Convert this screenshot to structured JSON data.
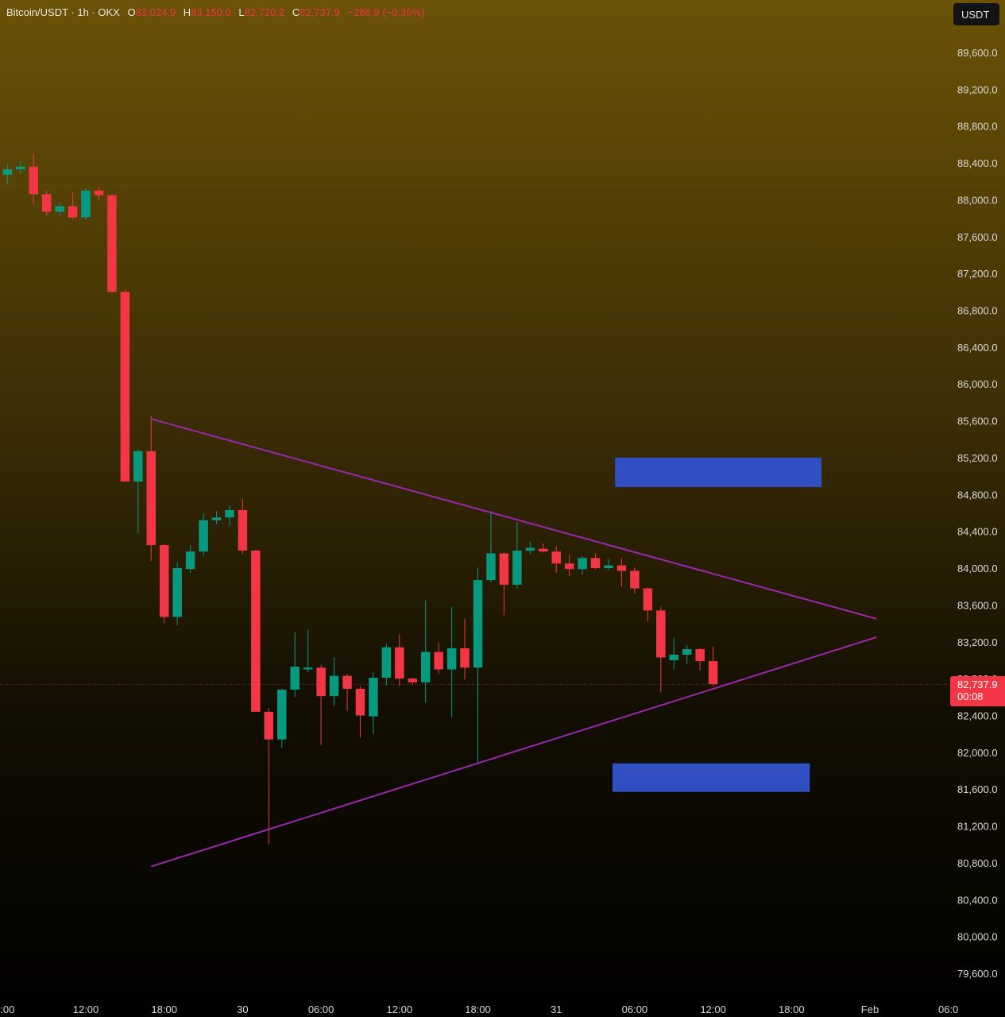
{
  "legend": {
    "symbol": "Bitcoin/USDT · 1h · OKX",
    "open_label": "O",
    "open": "83,024.9",
    "high_label": "H",
    "high": "83,150.0",
    "low_label": "L",
    "low": "82,720.2",
    "close_label": "C",
    "close": "82,737.9",
    "change": "−286.9 (−0.35%)"
  },
  "currency": "USDT",
  "last_price": {
    "price": "82,737.9",
    "countdown": "00:08"
  },
  "colors": {
    "up": "#089981",
    "down": "#f23645",
    "trendline": "#9c27b0",
    "zone": "#2f4fc2",
    "background_top": "#6b5206",
    "background_bottom": "#000000",
    "axis_text": "#d9d9d9"
  },
  "chart_data": {
    "type": "candlestick",
    "ylim": [
      79400,
      90000
    ],
    "y_ticks": [
      "79,600.0",
      "80,000.0",
      "80,400.0",
      "80,800.0",
      "81,200.0",
      "81,600.0",
      "82,000.0",
      "82,400.0",
      "82,800.0",
      "83,200.0",
      "83,600.0",
      "84,000.0",
      "84,400.0",
      "84,800.0",
      "85,200.0",
      "85,600.0",
      "86,000.0",
      "86,400.0",
      "86,800.0",
      "87,200.0",
      "87,600.0",
      "88,000.0",
      "88,400.0",
      "88,800.0",
      "89,200.0",
      "89,600.0"
    ],
    "x_ticks": [
      {
        "label": ":00",
        "i": -6
      },
      {
        "label": "12:00",
        "i": 0
      },
      {
        "label": "18:00",
        "i": 6
      },
      {
        "label": "30",
        "i": 12
      },
      {
        "label": "06:00",
        "i": 18
      },
      {
        "label": "12:00",
        "i": 24
      },
      {
        "label": "18:00",
        "i": 30
      },
      {
        "label": "31",
        "i": 36
      },
      {
        "label": "06:00",
        "i": 42
      },
      {
        "label": "12:00",
        "i": 48
      },
      {
        "label": "18:00",
        "i": 54
      },
      {
        "label": "Feb",
        "i": 60
      },
      {
        "label": "06:0",
        "i": 66
      }
    ],
    "candles": [
      {
        "i": -6,
        "o": 88270,
        "h": 88390,
        "l": 88170,
        "c": 88330
      },
      {
        "i": -5,
        "o": 88330,
        "h": 88420,
        "l": 88290,
        "c": 88360
      },
      {
        "i": -4,
        "o": 88360,
        "h": 88500,
        "l": 87950,
        "c": 88060
      },
      {
        "i": -3,
        "o": 88060,
        "h": 88100,
        "l": 87830,
        "c": 87870
      },
      {
        "i": -2,
        "o": 87870,
        "h": 87970,
        "l": 87830,
        "c": 87930
      },
      {
        "i": -1,
        "o": 87930,
        "h": 88080,
        "l": 87790,
        "c": 87810
      },
      {
        "i": 0,
        "o": 87810,
        "h": 88130,
        "l": 87780,
        "c": 88100
      },
      {
        "i": 1,
        "o": 88100,
        "h": 88140,
        "l": 88000,
        "c": 88050
      },
      {
        "i": 2,
        "o": 88050,
        "h": 88060,
        "l": 86990,
        "c": 87000
      },
      {
        "i": 3,
        "o": 87000,
        "h": 87020,
        "l": 84950,
        "c": 84940
      },
      {
        "i": 4,
        "o": 84940,
        "h": 85290,
        "l": 84380,
        "c": 85270
      },
      {
        "i": 5,
        "o": 85270,
        "h": 85650,
        "l": 84080,
        "c": 84250
      },
      {
        "i": 6,
        "o": 84250,
        "h": 84260,
        "l": 83400,
        "c": 83470
      },
      {
        "i": 7,
        "o": 83470,
        "h": 84060,
        "l": 83380,
        "c": 84000
      },
      {
        "i": 8,
        "o": 83990,
        "h": 84250,
        "l": 83950,
        "c": 84180
      },
      {
        "i": 9,
        "o": 84180,
        "h": 84590,
        "l": 84130,
        "c": 84520
      },
      {
        "i": 10,
        "o": 84520,
        "h": 84620,
        "l": 84480,
        "c": 84550
      },
      {
        "i": 11,
        "o": 84550,
        "h": 84680,
        "l": 84460,
        "c": 84630
      },
      {
        "i": 12,
        "o": 84630,
        "h": 84750,
        "l": 84150,
        "c": 84190
      },
      {
        "i": 13,
        "o": 84190,
        "h": 84200,
        "l": 82450,
        "c": 82440
      },
      {
        "i": 14,
        "o": 82440,
        "h": 82480,
        "l": 81000,
        "c": 82140
      },
      {
        "i": 15,
        "o": 82140,
        "h": 82690,
        "l": 82050,
        "c": 82680
      },
      {
        "i": 16,
        "o": 82680,
        "h": 83300,
        "l": 82600,
        "c": 82930
      },
      {
        "i": 17,
        "o": 82900,
        "h": 83330,
        "l": 82870,
        "c": 82920
      },
      {
        "i": 18,
        "o": 82920,
        "h": 82950,
        "l": 82080,
        "c": 82610
      },
      {
        "i": 19,
        "o": 82610,
        "h": 83030,
        "l": 82500,
        "c": 82830
      },
      {
        "i": 20,
        "o": 82830,
        "h": 82850,
        "l": 82450,
        "c": 82690
      },
      {
        "i": 21,
        "o": 82690,
        "h": 82720,
        "l": 82160,
        "c": 82400
      },
      {
        "i": 22,
        "o": 82390,
        "h": 82870,
        "l": 82200,
        "c": 82810
      },
      {
        "i": 23,
        "o": 82810,
        "h": 83180,
        "l": 82730,
        "c": 83140
      },
      {
        "i": 24,
        "o": 83140,
        "h": 83280,
        "l": 82720,
        "c": 82800
      },
      {
        "i": 25,
        "o": 82800,
        "h": 82810,
        "l": 82730,
        "c": 82760
      },
      {
        "i": 26,
        "o": 82760,
        "h": 83650,
        "l": 82540,
        "c": 83090
      },
      {
        "i": 27,
        "o": 83090,
        "h": 83190,
        "l": 82850,
        "c": 82900
      },
      {
        "i": 28,
        "o": 82900,
        "h": 83580,
        "l": 82380,
        "c": 83130
      },
      {
        "i": 29,
        "o": 83130,
        "h": 83450,
        "l": 82790,
        "c": 82920
      },
      {
        "i": 30,
        "o": 82920,
        "h": 84010,
        "l": 81870,
        "c": 83870
      },
      {
        "i": 31,
        "o": 83870,
        "h": 84620,
        "l": 83850,
        "c": 84160
      },
      {
        "i": 32,
        "o": 84160,
        "h": 84170,
        "l": 83490,
        "c": 83820
      },
      {
        "i": 33,
        "o": 83820,
        "h": 84500,
        "l": 83780,
        "c": 84190
      },
      {
        "i": 34,
        "o": 84190,
        "h": 84290,
        "l": 84150,
        "c": 84220
      },
      {
        "i": 35,
        "o": 84210,
        "h": 84270,
        "l": 84170,
        "c": 84180
      },
      {
        "i": 36,
        "o": 84180,
        "h": 84240,
        "l": 83950,
        "c": 84050
      },
      {
        "i": 37,
        "o": 84050,
        "h": 84150,
        "l": 83910,
        "c": 83990
      },
      {
        "i": 38,
        "o": 83990,
        "h": 84130,
        "l": 83930,
        "c": 84110
      },
      {
        "i": 39,
        "o": 84110,
        "h": 84160,
        "l": 83990,
        "c": 84000
      },
      {
        "i": 40,
        "o": 84000,
        "h": 84100,
        "l": 83980,
        "c": 84030
      },
      {
        "i": 41,
        "o": 84030,
        "h": 84110,
        "l": 83800,
        "c": 83970
      },
      {
        "i": 42,
        "o": 83970,
        "h": 84010,
        "l": 83730,
        "c": 83780
      },
      {
        "i": 43,
        "o": 83780,
        "h": 83790,
        "l": 83420,
        "c": 83540
      },
      {
        "i": 44,
        "o": 83540,
        "h": 83580,
        "l": 82650,
        "c": 83030
      },
      {
        "i": 45,
        "o": 83000,
        "h": 83240,
        "l": 82900,
        "c": 83060
      },
      {
        "i": 46,
        "o": 83060,
        "h": 83160,
        "l": 82960,
        "c": 83120
      },
      {
        "i": 47,
        "o": 83120,
        "h": 83130,
        "l": 82890,
        "c": 82990
      },
      {
        "i": 48,
        "o": 82990,
        "h": 83150,
        "l": 82720,
        "c": 82740
      }
    ],
    "trendlines": [
      {
        "name": "upper-trendline",
        "p1": {
          "i": 5,
          "v": 85620
        },
        "p2": {
          "i": 60.5,
          "v": 83450
        }
      },
      {
        "name": "lower-trendline",
        "p1": {
          "i": 5,
          "v": 80760
        },
        "p2": {
          "i": 60.5,
          "v": 83250
        }
      }
    ],
    "zones": [
      {
        "name": "resistance-zone",
        "i1": 40.5,
        "i2": 56.3,
        "v1": 84880,
        "v2": 85200
      },
      {
        "name": "support-zone",
        "i1": 40.3,
        "i2": 55.4,
        "v1": 81570,
        "v2": 81880
      }
    ],
    "last_price_value": 82737.9
  }
}
